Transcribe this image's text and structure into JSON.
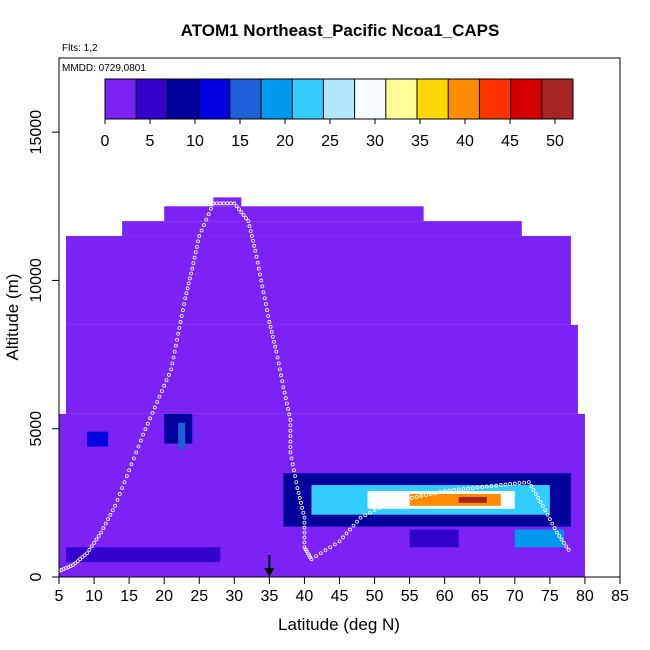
{
  "chart_data": {
    "type": "heatmap",
    "title": "ATOM1 Northeast_Pacific Ncoa1_CAPS",
    "annotations": {
      "flights": "Flts: 1,2",
      "dates": "MMDD: 0729,0801"
    },
    "xlabel": "Latitude (deg N)",
    "ylabel": "Altitude (m)",
    "xlim": [
      5,
      85
    ],
    "ylim": [
      0,
      17500
    ],
    "xticks": [
      "5",
      "10",
      "15",
      "20",
      "25",
      "30",
      "35",
      "40",
      "45",
      "50",
      "55",
      "60",
      "65",
      "70",
      "75",
      "80",
      "85"
    ],
    "yticks": [
      "0",
      "5000",
      "10000",
      "15000"
    ],
    "colorbar": {
      "ticks": [
        "0",
        "5",
        "10",
        "15",
        "20",
        "25",
        "30",
        "35",
        "40",
        "45",
        "50"
      ],
      "range": [
        0,
        52
      ],
      "colors": [
        "#7b23f5",
        "#3300cc",
        "#00009a",
        "#0000e0",
        "#1f5fd8",
        "#0099ee",
        "#33ccff",
        "#b5e6ff",
        "#f7fcff",
        "#ffff99",
        "#ffd700",
        "#ff8c00",
        "#ff3300",
        "#d40000",
        "#a52323"
      ]
    },
    "background_value": 1,
    "field_patches": [
      {
        "lat": [
          5,
          80
        ],
        "alt": [
          0,
          500
        ],
        "value": 2
      },
      {
        "lat": [
          6,
          28
        ],
        "alt": [
          500,
          1000
        ],
        "value": 4
      },
      {
        "lat": [
          50,
          78
        ],
        "alt": [
          500,
          1000
        ],
        "value": 3
      },
      {
        "lat": [
          9,
          12
        ],
        "alt": [
          4400,
          4900
        ],
        "value": 12
      },
      {
        "lat": [
          20,
          24
        ],
        "alt": [
          4500,
          5500
        ],
        "value": 9
      },
      {
        "lat": [
          22,
          23
        ],
        "alt": [
          4300,
          5200
        ],
        "value": 16
      },
      {
        "lat": [
          55,
          62
        ],
        "alt": [
          1000,
          1600
        ],
        "value": 6
      },
      {
        "lat": [
          70,
          77
        ],
        "alt": [
          1000,
          1600
        ],
        "value": 18
      },
      {
        "lat": [
          37,
          78
        ],
        "alt": [
          1700,
          3500
        ],
        "value": 8
      },
      {
        "lat": [
          41,
          75
        ],
        "alt": [
          2100,
          3100
        ],
        "value": 22
      },
      {
        "lat": [
          49,
          70
        ],
        "alt": [
          2300,
          2900
        ],
        "value": 30
      },
      {
        "lat": [
          55,
          68
        ],
        "alt": [
          2400,
          2800
        ],
        "value": 40
      },
      {
        "lat": [
          62,
          66
        ],
        "alt": [
          2500,
          2700
        ],
        "value": 50
      }
    ],
    "coverage": [
      {
        "lat": [
          5,
          80
        ],
        "alt": [
          0,
          5500
        ]
      },
      {
        "lat": [
          6,
          79
        ],
        "alt": [
          5500,
          8500
        ]
      },
      {
        "lat": [
          6,
          78
        ],
        "alt": [
          8500,
          11500
        ]
      },
      {
        "lat": [
          14,
          71
        ],
        "alt": [
          11500,
          12000
        ]
      },
      {
        "lat": [
          20,
          57
        ],
        "alt": [
          12000,
          12500
        ]
      },
      {
        "lat": [
          27,
          31
        ],
        "alt": [
          12500,
          12800
        ]
      }
    ],
    "flight_track": [
      [
        5,
        200
      ],
      [
        7,
        400
      ],
      [
        9,
        800
      ],
      [
        11,
        1500
      ],
      [
        13,
        2400
      ],
      [
        15,
        3600
      ],
      [
        17,
        4800
      ],
      [
        19,
        5900
      ],
      [
        21,
        7000
      ],
      [
        22,
        8200
      ],
      [
        23,
        9400
      ],
      [
        24,
        10400
      ],
      [
        25,
        11500
      ],
      [
        27,
        12600
      ],
      [
        30,
        12600
      ],
      [
        32,
        12000
      ],
      [
        33,
        11000
      ],
      [
        34,
        9800
      ],
      [
        35,
        8600
      ],
      [
        36,
        7600
      ],
      [
        37,
        6400
      ],
      [
        38,
        5300
      ],
      [
        38,
        4200
      ],
      [
        39,
        3000
      ],
      [
        40,
        2000
      ],
      [
        40,
        1000
      ],
      [
        41,
        600
      ],
      [
        45,
        1200
      ],
      [
        48,
        2000
      ],
      [
        52,
        2500
      ],
      [
        56,
        2700
      ],
      [
        60,
        2900
      ],
      [
        64,
        3000
      ],
      [
        68,
        3100
      ],
      [
        72,
        3200
      ],
      [
        74,
        2400
      ],
      [
        76,
        1500
      ],
      [
        78,
        800
      ]
    ],
    "marker_latitude": 35,
    "grid": false
  }
}
